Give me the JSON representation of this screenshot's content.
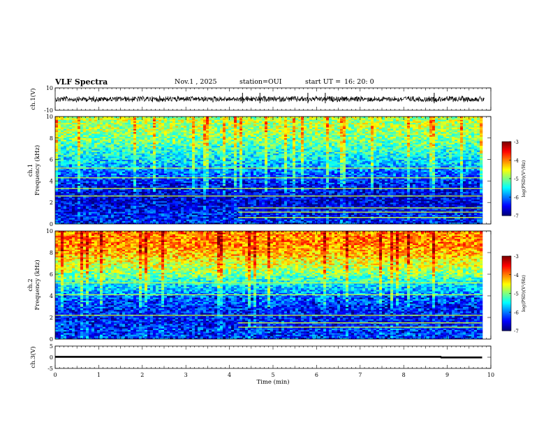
{
  "header": {
    "title": "VLF Spectra",
    "date": "Nov.1 , 2025",
    "station": "station=OUI",
    "start_label": "start UT =",
    "start_time": "16: 20: 0"
  },
  "chart_data": [
    {
      "type": "line",
      "panel": "ch1-waveform",
      "ylabel": "ch.1(V)",
      "ylim": [
        -10,
        10
      ],
      "yticks": [
        "10",
        "-10"
      ],
      "description_series": "voltage waveform",
      "x": [
        0,
        0.5,
        1,
        1.5,
        2,
        2.5,
        3,
        3.5,
        4,
        4.5,
        5,
        5.5,
        6,
        6.5,
        7,
        7.5,
        8,
        8.5,
        9,
        9.5,
        9.8
      ],
      "y": [
        0,
        0,
        0,
        0,
        0,
        0,
        0,
        0,
        0,
        0,
        0,
        0,
        0,
        0,
        0,
        0,
        0,
        0,
        0,
        0,
        0
      ],
      "spikes_at_min": [
        4.3,
        4.7,
        5.8,
        6.2,
        8.7
      ],
      "xlim": [
        0,
        10
      ],
      "grid": false
    },
    {
      "type": "heatmap",
      "panel": "ch1-spectrogram",
      "ylabel_top": "ch.1",
      "ylabel": "Frequency (kHz)",
      "ylim": [
        0,
        10
      ],
      "yticks": [
        "0",
        "2",
        "4",
        "6",
        "8",
        "10"
      ],
      "xlim": [
        0,
        9.8
      ],
      "colorbar": {
        "label": "log(PSD)(V²/Hz)",
        "range": [
          -7,
          -3
        ],
        "ticks": [
          "-3",
          "-4",
          "-5",
          "-6",
          "-7"
        ]
      },
      "profile_khz": [
        0,
        1,
        2,
        3,
        4,
        5,
        6,
        7,
        8,
        9,
        10
      ],
      "profile_log_psd": [
        -6.3,
        -6.4,
        -6.6,
        -6.5,
        -6.3,
        -6.0,
        -5.6,
        -5.3,
        -5.0,
        -4.8,
        -4.8
      ],
      "bright_lines_khz": [
        0.6,
        1.1,
        1.5,
        2.6,
        3.3,
        4.3,
        5.2
      ],
      "step_change_at_min": 4.2
    },
    {
      "type": "heatmap",
      "panel": "ch2-spectrogram",
      "ylabel_top": "ch.2",
      "ylabel": "Frequency (kHz)",
      "ylim": [
        0,
        10
      ],
      "yticks": [
        "0",
        "2",
        "4",
        "6",
        "8",
        "10"
      ],
      "xlim": [
        0,
        9.8
      ],
      "colorbar": {
        "label": "log(PSD)(V²/Hz)",
        "range": [
          -7,
          -3
        ],
        "ticks": [
          "-3",
          "-4",
          "-5",
          "-6",
          "-7"
        ]
      },
      "profile_khz": [
        0,
        1,
        2,
        3,
        4,
        5,
        6,
        7,
        8,
        9,
        10
      ],
      "profile_log_psd": [
        -6.2,
        -6.3,
        -6.4,
        -6.3,
        -6.0,
        -5.6,
        -5.0,
        -4.6,
        -4.2,
        -4.0,
        -4.0
      ],
      "bright_lines_khz": [
        1.1,
        1.5,
        2.2,
        4.1,
        5.2
      ],
      "step_change_at_min": 4.2
    },
    {
      "type": "line",
      "panel": "ch3-level",
      "ylabel": "ch.3(V)",
      "ylim": [
        -5,
        5
      ],
      "yticks": [
        "5",
        "0",
        "-5"
      ],
      "x": [
        0,
        8.85,
        8.86,
        9.8
      ],
      "y": [
        0.2,
        0.2,
        -0.1,
        -0.1
      ],
      "xlabel": "Time (min)",
      "xticks": [
        "0",
        "1",
        "2",
        "3",
        "4",
        "5",
        "6",
        "7",
        "8",
        "9",
        "10"
      ],
      "xlim": [
        0,
        10
      ]
    }
  ]
}
